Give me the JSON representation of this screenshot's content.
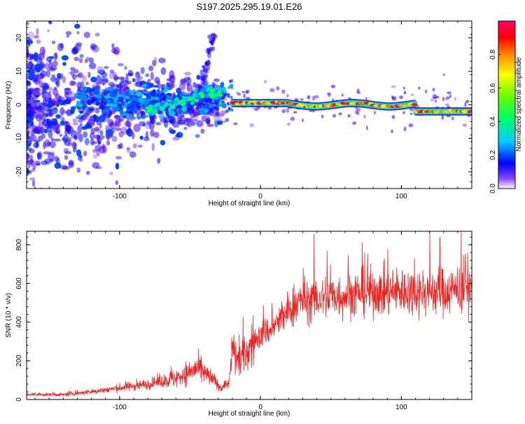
{
  "title": "S197.2025.295.19.01.E26",
  "chart_data": [
    {
      "type": "heatmap",
      "panel": "spectrogram",
      "xlabel": "Height of straight line (km)",
      "ylabel": "Frequency (Hz)",
      "xlim": [
        -166,
        150
      ],
      "ylim": [
        -25,
        25
      ],
      "xticks": [
        -100,
        0,
        100
      ],
      "xtick_labels": [
        "-100",
        "0",
        "100"
      ],
      "yticks": [
        -20,
        -10,
        0,
        10,
        20
      ],
      "ytick_labels": [
        "-20",
        "-10",
        "0",
        "10",
        "20"
      ],
      "colorbar": {
        "label": "Normalized spectral amplitude",
        "range": [
          0,
          1
        ],
        "ticks": [
          0.0,
          0.2,
          0.4,
          0.6,
          0.8
        ],
        "tick_labels": [
          "0.0",
          "0.2",
          "0.4",
          "0.6",
          "0.8"
        ],
        "colors": [
          "#ffffff",
          "#5500ee",
          "#0000ff",
          "#00ccff",
          "#00ff66",
          "#66ff00",
          "#ffff00",
          "#ff8800",
          "#ff0000",
          "#ff0066"
        ]
      },
      "features": [
        {
          "region": "noise cloud",
          "x_range": [
            -166,
            -30
          ],
          "freq_range": [
            -25,
            25
          ],
          "amplitude": "low (0.05-0.3)"
        },
        {
          "region": "tone ramp",
          "x_range": [
            -80,
            -22
          ],
          "freq_range": [
            -4,
            5
          ],
          "amplitude": "medium (0.3-0.5)"
        },
        {
          "region": "carrier line",
          "x_range": [
            -20,
            150
          ],
          "freq_range": [
            -3,
            1
          ],
          "amplitude": "high (0.6-1.0)"
        }
      ]
    },
    {
      "type": "line",
      "panel": "snr",
      "xlabel": "Height of straight line (km)",
      "ylabel": "SNR (10 * v/v)",
      "xlim": [
        -166,
        150
      ],
      "ylim": [
        0,
        870
      ],
      "xticks": [
        -100,
        0,
        100
      ],
      "xtick_labels": [
        "-100",
        "0",
        "100"
      ],
      "yticks": [
        0,
        200,
        400,
        600,
        800
      ],
      "ytick_labels": [
        "0",
        "200",
        "400",
        "600",
        "800"
      ],
      "line_color": "#ee2222",
      "envelope": {
        "x": [
          -166,
          -140,
          -120,
          -100,
          -80,
          -60,
          -45,
          -35,
          -28,
          -22,
          -20,
          -15,
          -10,
          -5,
          0,
          5,
          10,
          15,
          20,
          25,
          30,
          40,
          50,
          60,
          70,
          80,
          90,
          100,
          110,
          120,
          130,
          140,
          150
        ],
        "y": [
          25,
          25,
          40,
          60,
          80,
          110,
          160,
          110,
          60,
          90,
          250,
          200,
          240,
          300,
          330,
          350,
          380,
          420,
          460,
          500,
          510,
          520,
          530,
          540,
          550,
          555,
          555,
          560,
          560,
          560,
          560,
          565,
          570
        ]
      }
    }
  ]
}
